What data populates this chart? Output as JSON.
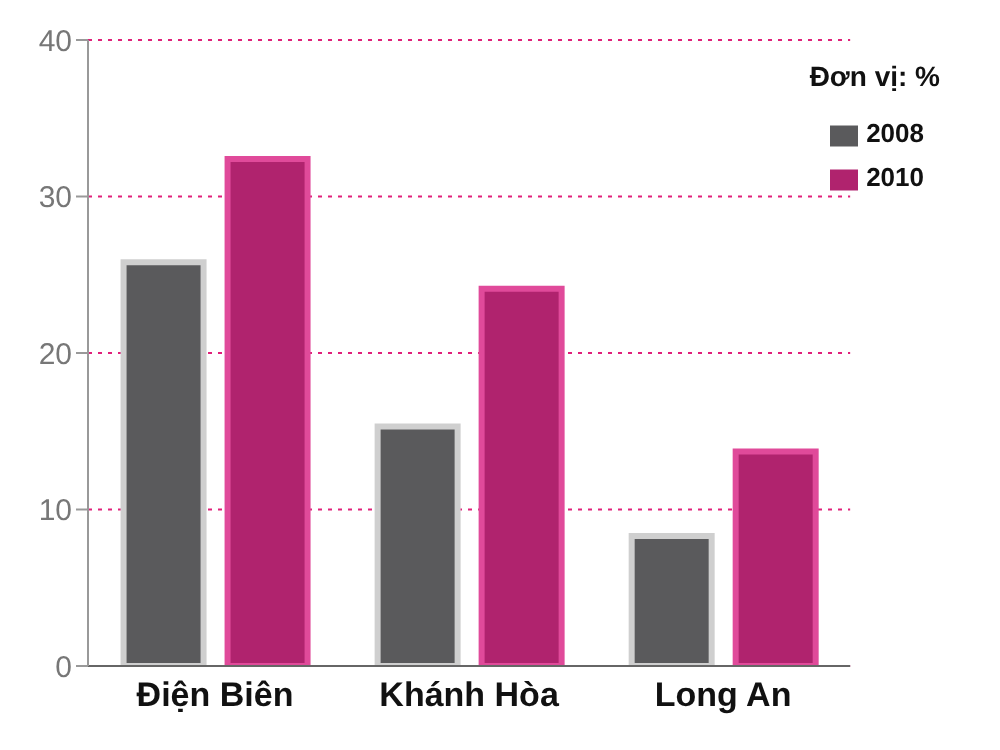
{
  "chart_data": {
    "type": "bar",
    "categories": [
      "Điện Biên",
      "Khánh Hòa",
      "Long An"
    ],
    "series": [
      {
        "name": "2008",
        "color": "#5a5a5c",
        "values": [
          25.8,
          15.3,
          8.3
        ]
      },
      {
        "name": "2010",
        "color": "#b0236e",
        "values": [
          32.4,
          24.1,
          13.7
        ]
      }
    ],
    "ylim": [
      0,
      40
    ],
    "yticks": [
      0,
      10,
      20,
      30,
      40
    ],
    "grid": "y",
    "legend": "top right",
    "annotations": [
      "Đơn vị: %"
    ]
  }
}
